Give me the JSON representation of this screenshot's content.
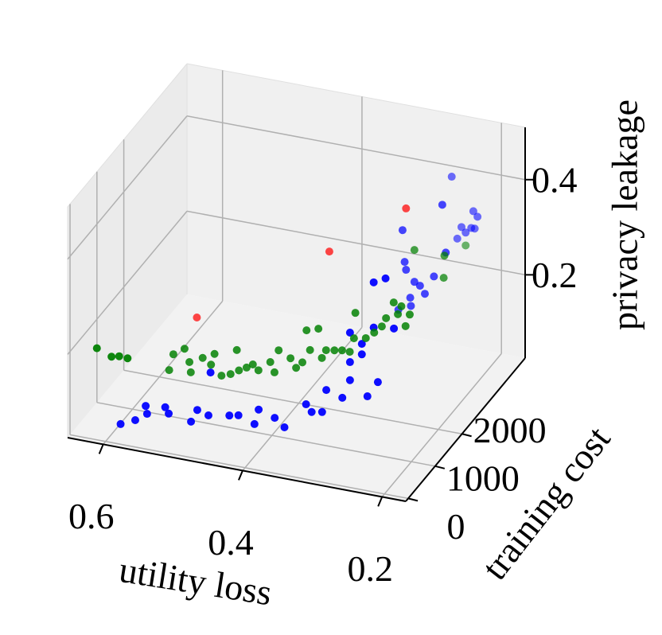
{
  "chart_data": {
    "type": "scatter3d",
    "xlabel": "utility loss",
    "ylabel": "training cost",
    "zlabel": "privacy leakage",
    "xlim": [
      0.651,
      0.166
    ],
    "ylim": [
      -90,
      4350
    ],
    "zlim": [
      0.025,
      0.51
    ],
    "xticks": [
      0.6,
      0.4,
      0.2
    ],
    "yticks": [
      0,
      1000,
      2000
    ],
    "zticks": [
      0.2,
      0.4
    ],
    "grid": true,
    "series": [
      {
        "color": "#0000ff",
        "x": [
          0.592,
          0.571,
          0.556,
          0.554,
          0.528,
          0.523,
          0.491,
          0.482,
          0.466,
          0.436,
          0.423,
          0.4,
          0.394,
          0.371,
          0.357,
          0.326,
          0.318,
          0.303,
          0.297,
          0.274,
          0.263,
          0.263,
          0.238,
          0.223,
          0.246,
          0.229,
          0.229,
          0.212,
          0.2,
          0.463,
          0.246,
          0.263,
          0.257,
          0.254,
          0.252,
          0.246,
          0.24,
          0.232,
          0.225,
          0.212,
          0.2,
          0.195,
          0.263,
          0.245,
          0.237,
          0.229,
          0.223,
          0.217,
          0.209,
          0.204,
          0.206,
          0.2
        ],
        "y": [
          350,
          350,
          350,
          350,
          350,
          350,
          350,
          350,
          350,
          350,
          350,
          350,
          350,
          350,
          350,
          350,
          350,
          350,
          350,
          350,
          350,
          350,
          350,
          350,
          350,
          350,
          350,
          350,
          350,
          350,
          350,
          350,
          2150,
          2150,
          2150,
          2150,
          2150,
          2150,
          2150,
          2150,
          2150,
          2150,
          2150,
          2150,
          3460,
          3460,
          3460,
          3460,
          3460,
          3460,
          3460,
          3460
        ],
        "z": [
          0.04,
          0.054,
          0.088,
          0.072,
          0.093,
          0.081,
          0.073,
          0.1,
          0.093,
          0.101,
          0.105,
          0.093,
          0.125,
          0.114,
          0.098,
          0.155,
          0.141,
          0.145,
          0.193,
          0.183,
          0.223,
          0.261,
          0.196,
          0.23,
          0.282,
          0.343,
          0.438,
          0.451,
          0.349,
          0.184,
          0.304,
          0.323,
          0.418,
          0.352,
          0.336,
          0.279,
          0.314,
          0.308,
          0.293,
          0.333,
          0.487,
          0.388,
          0.249,
          0.262,
          0.447,
          0.319,
          0.345,
          0.335,
          0.347,
          0.347,
          0.383,
          0.373
        ]
      },
      {
        "color": "#008000",
        "x": [
          0.626,
          0.605,
          0.594,
          0.582,
          0.557,
          0.551,
          0.535,
          0.526,
          0.528,
          0.509,
          0.497,
          0.492,
          0.482,
          0.469,
          0.46,
          0.457,
          0.446,
          0.437,
          0.429,
          0.412,
          0.406,
          0.4,
          0.383,
          0.375,
          0.366,
          0.36,
          0.355,
          0.343,
          0.338,
          0.332,
          0.32,
          0.309,
          0.298,
          0.29,
          0.292,
          0.275,
          0.263,
          0.252,
          0.246,
          0.235,
          0.229,
          0.224,
          0.218,
          0.212,
          0.24,
          0.197,
          0.198,
          0.217
        ],
        "y": [
          350,
          350,
          350,
          350,
          1250,
          1250,
          1250,
          1250,
          1250,
          1250,
          1250,
          1250,
          1250,
          1250,
          1250,
          1250,
          1250,
          1250,
          1250,
          1250,
          1250,
          1250,
          1250,
          1250,
          1250,
          1250,
          1250,
          1250,
          1250,
          1250,
          1250,
          1250,
          1250,
          1250,
          1250,
          1250,
          1250,
          1250,
          1250,
          1250,
          1250,
          1250,
          1250,
          1250,
          2150,
          2150,
          2150,
          3460
        ],
        "z": [
          0.19,
          0.178,
          0.182,
          0.181,
          0.102,
          0.137,
          0.153,
          0.106,
          0.127,
          0.141,
          0.13,
          0.154,
          0.111,
          0.118,
          0.171,
          0.129,
          0.138,
          0.147,
          0.137,
          0.159,
          0.139,
          0.187,
          0.175,
          0.157,
          0.171,
          0.24,
          0.2,
          0.248,
          0.188,
          0.206,
          0.209,
          0.212,
          0.212,
          0.296,
          0.242,
          0.247,
          0.262,
          0.278,
          0.297,
          0.333,
          0.31,
          0.328,
          0.288,
          0.314,
          0.381,
          0.381,
          0.334,
          0.308
        ]
      },
      {
        "color": "#ff0000",
        "x": [
          0.552,
          0.362,
          0.252
        ],
        "y": [
          2150,
          2150,
          2150
        ],
        "z": [
          0.153,
          0.344,
          0.465
        ]
      }
    ]
  }
}
